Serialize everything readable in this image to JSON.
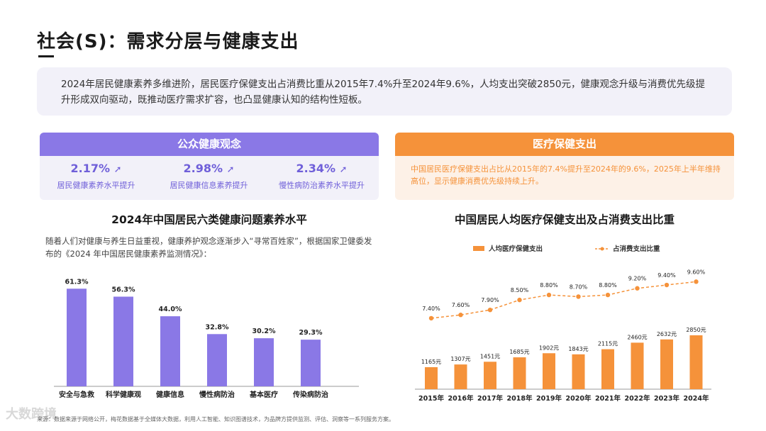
{
  "title": "社会(S)：需求分层与健康支出",
  "summary": "2024年居民健康素养多维进阶，居民医疗保健支出占消费比重从2015年7.4%升至2024年9.6%，人均支出突破2850元，健康观念升级与消费优先级提升形成双向驱动，既推动医疗需求扩容，也凸显健康认知的结构性短板。",
  "public_health": {
    "header": "公众健康观念",
    "stats": [
      {
        "value": "2.17%",
        "label": "居民健康素养水平提升"
      },
      {
        "value": "2.98%",
        "label": "居民健康信息素养提升"
      },
      {
        "value": "2.34%",
        "label": "慢性病防治素养水平提升"
      }
    ]
  },
  "medical_spending": {
    "header": "医疗保健支出",
    "text": "中国居民医疗保健支出占比从2015年的7.4%提升至2024年的9.6%，2025年上半年维持高位，显示健康消费优先级持续上升。"
  },
  "left_desc": "随着人们对健康与养生日益重视，健康养护观念逐渐步入“寻常百姓家”，根据国家卫健委发布的《2024 年中国居民健康素养监测情况》：",
  "footer": "来源：数据来源于网络公开，梅花数据基于全媒体大数据，利用人工智能、知识图谱技术，为品牌方提供监测、评估、洞察等一系列服务方案。",
  "watermark": "大数跨境",
  "colors": {
    "purple": "#8a78e6",
    "orange": "#f5923a"
  },
  "chart_data": [
    {
      "type": "bar",
      "title": "2024年中国居民六类健康问题素养水平",
      "categories": [
        "安全与急救",
        "科学健康观",
        "健康信息",
        "慢性病防治",
        "基本医疗",
        "传染病防治"
      ],
      "values": [
        61.3,
        56.3,
        44.0,
        32.8,
        30.2,
        29.3
      ],
      "value_labels": [
        "61.3%",
        "56.3%",
        "44.0%",
        "32.8%",
        "30.2%",
        "29.3%"
      ],
      "ylim": [
        0,
        70
      ]
    },
    {
      "type": "bar+line",
      "title": "中国居民人均医疗保健支出及占消费支出比重",
      "categories": [
        "2015年",
        "2016年",
        "2017年",
        "2018年",
        "2019年",
        "2020年",
        "2021年",
        "2022年",
        "2023年",
        "2024年"
      ],
      "series": [
        {
          "name": "人均医疗保健支出",
          "type": "bar",
          "values": [
            1165,
            1307,
            1451,
            1685,
            1902,
            1843,
            2115,
            2460,
            2632,
            2850
          ],
          "value_labels": [
            "1165元",
            "1307元",
            "1451元",
            "1685元",
            "1902元",
            "1843元",
            "2115元",
            "2460元",
            "2632元",
            "2850元"
          ]
        },
        {
          "name": "占消费支出比重",
          "type": "line",
          "values": [
            7.4,
            7.6,
            7.9,
            8.5,
            8.8,
            8.7,
            8.8,
            9.2,
            9.4,
            9.6
          ],
          "value_labels": [
            "7.40%",
            "7.60%",
            "7.90%",
            "8.50%",
            "8.80%",
            "8.70%",
            "8.80%",
            "9.20%",
            "9.40%",
            "9.60%"
          ]
        }
      ],
      "bar_ylim": [
        0,
        3000
      ],
      "line_ylim": [
        6.5,
        10.5
      ]
    }
  ]
}
